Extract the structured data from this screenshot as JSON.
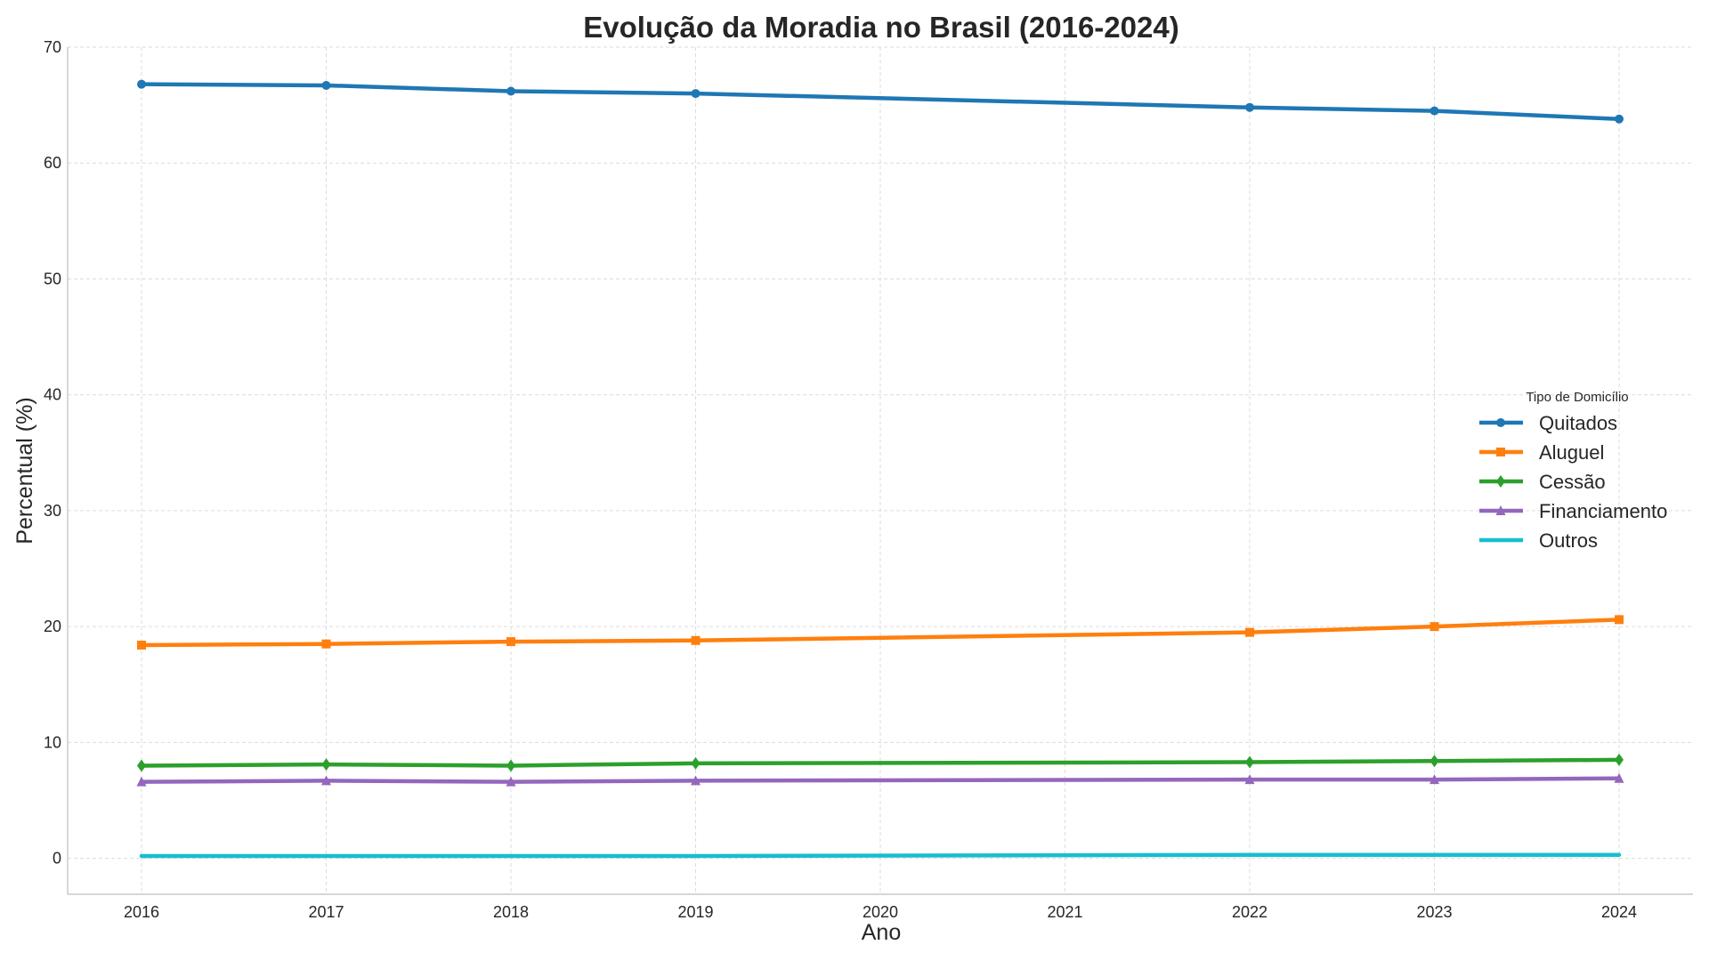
{
  "chart_data": {
    "type": "line",
    "title": "Evolução da Moradia no Brasil (2016-2024)",
    "xlabel": "Ano",
    "ylabel": "Percentual (%)",
    "xlim": [
      2015.6,
      2024.4
    ],
    "ylim": [
      -3.1,
      70
    ],
    "xticks": [
      2016,
      2017,
      2018,
      2019,
      2020,
      2021,
      2022,
      2023,
      2024
    ],
    "yticks": [
      0,
      10,
      20,
      30,
      40,
      50,
      60,
      70
    ],
    "grid": true,
    "legend": {
      "title": "Tipo de Domicílio",
      "placement": "center-right"
    },
    "x": [
      2016,
      2017,
      2018,
      2019,
      2022,
      2023,
      2024
    ],
    "series": [
      {
        "name": "Quitados",
        "color": "#1f77b4",
        "marker": "circle",
        "values": [
          66.8,
          66.7,
          66.2,
          66.0,
          64.8,
          64.5,
          63.8
        ]
      },
      {
        "name": "Aluguel",
        "color": "#ff7f0e",
        "marker": "square",
        "values": [
          18.4,
          18.5,
          18.7,
          18.8,
          19.5,
          20.0,
          20.6
        ]
      },
      {
        "name": "Cessão",
        "color": "#2ca02c",
        "marker": "diamond",
        "values": [
          8.0,
          8.1,
          8.0,
          8.2,
          8.3,
          8.4,
          8.5
        ]
      },
      {
        "name": "Financiamento",
        "color": "#9467bd",
        "marker": "triangle",
        "values": [
          6.6,
          6.7,
          6.6,
          6.7,
          6.8,
          6.8,
          6.9
        ]
      },
      {
        "name": "Outros",
        "color": "#17becf",
        "marker": "none",
        "values": [
          0.2,
          0.2,
          0.2,
          0.2,
          0.3,
          0.3,
          0.3
        ]
      }
    ]
  }
}
